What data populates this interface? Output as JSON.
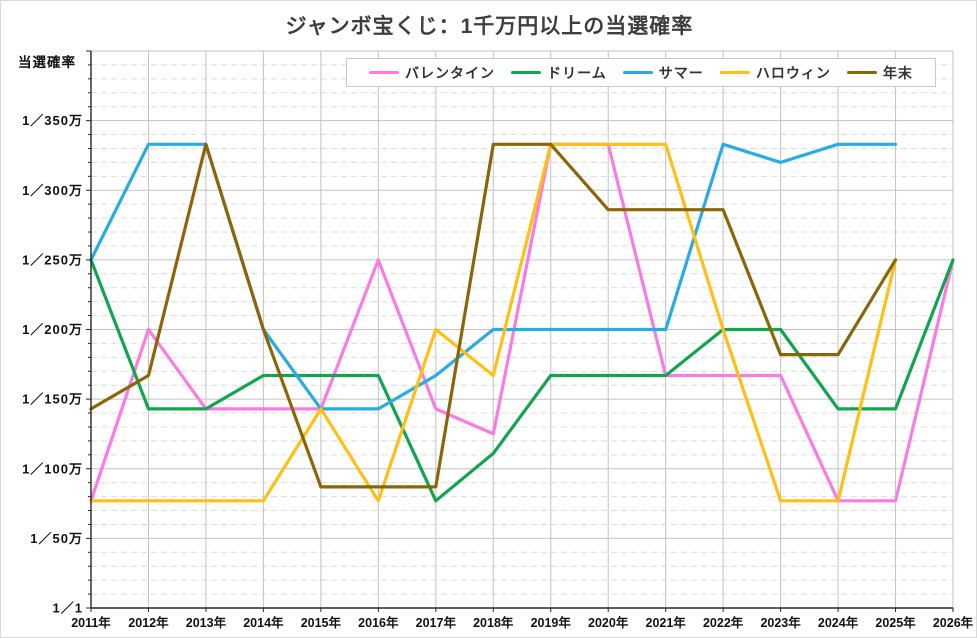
{
  "title": "ジャンボ宝くじ：1千万円以上の当選確率",
  "y_axis_title": "当選確率",
  "chart_data": {
    "type": "line",
    "title": "ジャンボ宝くじ：1千万円以上の当選確率",
    "ylabel": "当選確率",
    "xlabel": "",
    "legend_position": "top",
    "grid": "major-solid + minor-dashed",
    "x_categories": [
      "2011年",
      "2012年",
      "2013年",
      "2014年",
      "2015年",
      "2016年",
      "2017年",
      "2018年",
      "2019年",
      "2020年",
      "2021年",
      "2022年",
      "2023年",
      "2024年",
      "2025年",
      "2026年"
    ],
    "y_axis": {
      "description": "odds shown as 1／N万 (denominator, units of 10,000), linear in N",
      "min": 0,
      "max": 400,
      "major_step": 50,
      "minor_step": 10,
      "tick_values": [
        0,
        50,
        100,
        150,
        200,
        250,
        300,
        350
      ],
      "tick_labels": [
        "1／1",
        "1／50万",
        "1／100万",
        "1／150万",
        "1／200万",
        "1／250万",
        "1／300万",
        "1／350万"
      ]
    },
    "series": [
      {
        "name": "バレンタイン",
        "slug": "valentine",
        "color": "#fb7be5",
        "values": [
          77,
          200,
          143,
          143,
          143,
          250,
          143,
          125,
          333,
          333,
          167,
          167,
          167,
          77,
          77,
          250
        ]
      },
      {
        "name": "ドリーム",
        "slug": "dream",
        "color": "#12a44f",
        "values": [
          250,
          143,
          143,
          167,
          167,
          167,
          77,
          111,
          167,
          167,
          167,
          200,
          200,
          143,
          143,
          250
        ]
      },
      {
        "name": "サマー",
        "slug": "summer",
        "color": "#29abe3",
        "values": [
          250,
          333,
          333,
          200,
          143,
          143,
          167,
          200,
          200,
          200,
          200,
          333,
          320,
          333,
          333,
          null
        ]
      },
      {
        "name": "ハロウィン",
        "slug": "halloween",
        "color": "#ffc013",
        "values": [
          77,
          77,
          77,
          77,
          143,
          77,
          200,
          167,
          333,
          333,
          333,
          200,
          77,
          77,
          250,
          null
        ]
      },
      {
        "name": "年末",
        "slug": "yearend",
        "color": "#8b6508",
        "values": [
          143,
          167,
          333,
          200,
          87,
          87,
          87,
          333,
          333,
          286,
          286,
          286,
          182,
          182,
          250,
          null
        ]
      }
    ]
  }
}
